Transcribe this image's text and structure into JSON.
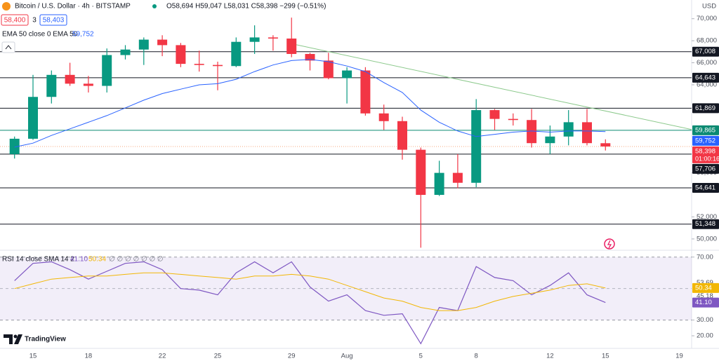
{
  "chart_data": {
    "type": "candlestick",
    "title": "Bitcoin / U.S. Dollar · 4h · BITSTAMP",
    "header": {
      "ohlc": "O58,694 H59,047 L58,031 C58,398 −299 (−0.51%)",
      "bid": "58,400",
      "spread": "3",
      "ask": "58,403"
    },
    "currency": "USD",
    "brand": "TradingView",
    "categories": [
      null,
      null,
      "15",
      null,
      null,
      "18",
      null,
      null,
      null,
      "22",
      null,
      null,
      "25",
      null,
      null,
      null,
      "29",
      null,
      null,
      "Aug",
      null,
      null,
      null,
      "5",
      null,
      null,
      "8",
      null,
      null,
      null,
      "12",
      null,
      null,
      "15",
      null,
      null,
      null,
      "19"
    ],
    "open": [
      null,
      57700,
      59100,
      62900,
      64900,
      64100,
      63900,
      66700,
      67200,
      68100,
      67600,
      65900,
      65800,
      65700,
      67900,
      68300,
      68200,
      66800,
      66200,
      64600,
      65300,
      61400,
      60700,
      58100,
      54000,
      56000,
      55100,
      61700,
      60900,
      60800,
      58700,
      59300,
      60600,
      58694,
      null,
      null,
      null,
      null
    ],
    "high": [
      null,
      59300,
      64900,
      65300,
      66000,
      64800,
      67300,
      67600,
      68300,
      68500,
      67800,
      67100,
      66100,
      68300,
      69400,
      68500,
      70100,
      66900,
      66900,
      65600,
      65600,
      62200,
      61100,
      58300,
      57100,
      57700,
      62700,
      61800,
      61400,
      61800,
      60300,
      61700,
      61800,
      59047,
      null,
      null,
      null,
      null
    ],
    "low": [
      null,
      57300,
      59000,
      62300,
      63900,
      63300,
      63300,
      66300,
      65800,
      66600,
      65600,
      65200,
      63500,
      65600,
      66800,
      67100,
      66500,
      65300,
      64500,
      62300,
      61200,
      59900,
      57200,
      49200,
      53900,
      54600,
      54700,
      59900,
      60300,
      58300,
      57700,
      58500,
      58500,
      58031,
      null,
      null,
      null,
      null
    ],
    "close": [
      null,
      59100,
      62900,
      64900,
      64100,
      63900,
      66700,
      67200,
      68100,
      67600,
      65900,
      65800,
      65700,
      67900,
      68300,
      68200,
      66800,
      66200,
      64600,
      65300,
      61400,
      60700,
      58100,
      54000,
      56000,
      55100,
      61700,
      60900,
      60800,
      58700,
      59300,
      60600,
      58700,
      58398,
      null,
      null,
      null,
      null
    ],
    "up_color": "#089981",
    "down_color": "#f23645",
    "ylim": [
      49100,
      71700
    ],
    "yticks": [
      {
        "value": 50000,
        "label": "50,000"
      },
      {
        "value": 52000,
        "label": "52,000"
      },
      {
        "value": 56000,
        "label": "56,000"
      },
      {
        "value": 64000,
        "label": "64,000"
      },
      {
        "value": 66000,
        "label": "66,000"
      },
      {
        "value": 68000,
        "label": "68,000"
      },
      {
        "value": 70000,
        "label": "70,000"
      }
    ],
    "ema": {
      "name": "EMA 50 close 0 EMA 50",
      "color": "#2962ff",
      "label": "59,752",
      "values": [
        null,
        58340,
        58700,
        59400,
        60000,
        60600,
        61200,
        61900,
        62600,
        63200,
        63600,
        64000,
        64100,
        64500,
        65200,
        65800,
        66200,
        66300,
        66100,
        65700,
        65200,
        64200,
        63300,
        61700,
        60600,
        59800,
        59300,
        59500,
        59700,
        59800,
        59700,
        59800,
        59800,
        59752,
        null,
        null,
        null,
        null
      ]
    },
    "levels": [
      {
        "value": 67008,
        "label": "67,008",
        "color": "#131722"
      },
      {
        "value": 64643,
        "label": "64,643",
        "color": "#131722"
      },
      {
        "value": 61869,
        "label": "61,869",
        "color": "#131722"
      },
      {
        "value": 59865,
        "label": "59,865",
        "color": "#0b8a72"
      },
      {
        "value": 57706,
        "label": "57,706",
        "color": "#131722"
      },
      {
        "value": 54641,
        "label": "54,641",
        "color": "#131722"
      },
      {
        "value": 51348,
        "label": "51,348",
        "color": "#131722"
      }
    ],
    "last_price": {
      "value": 58398,
      "label": "58,398",
      "countdown": "01:00:16",
      "color": "#f23645"
    },
    "trendline": {
      "color": "#8cc98c",
      "points": [
        [
          16,
          67730
        ],
        [
          37,
          60180
        ]
      ]
    },
    "rsi": {
      "name": "RSI 14 close SMA 14 2",
      "color": "#7e57c2",
      "value_label": "41.10",
      "flags": "∅ ∅ ∅ ∅ ∅ ∅ ∅",
      "values": [
        null,
        55,
        66,
        67,
        62,
        56,
        61,
        66,
        67,
        62,
        50,
        49,
        46,
        60,
        67,
        60,
        67,
        51,
        42,
        46,
        36,
        33,
        34,
        15,
        38,
        36,
        64,
        57,
        55,
        46,
        52,
        60,
        46,
        41.1,
        null,
        null,
        null,
        null
      ],
      "sma": {
        "color": "#f2b705",
        "value_label": "50.34",
        "values": [
          null,
          50,
          53,
          56,
          57,
          58,
          58,
          59,
          60,
          60,
          59,
          58,
          57,
          56,
          58,
          58,
          59,
          58,
          56,
          52,
          48,
          44,
          42,
          38,
          36,
          36,
          38,
          42,
          45,
          47,
          49,
          52,
          53,
          50.34,
          null,
          null,
          null,
          null
        ]
      },
      "ylim": [
        12,
        73
      ],
      "yticks": [
        {
          "value": 20,
          "label": "20.00"
        },
        {
          "value": 30,
          "label": "30.00"
        },
        {
          "value": 70,
          "label": "70.00"
        }
      ],
      "band": [
        30,
        70
      ],
      "markers": [
        {
          "value": 53.69,
          "label": "53.69"
        },
        {
          "value": 45.18,
          "label": "45.18"
        }
      ]
    }
  }
}
